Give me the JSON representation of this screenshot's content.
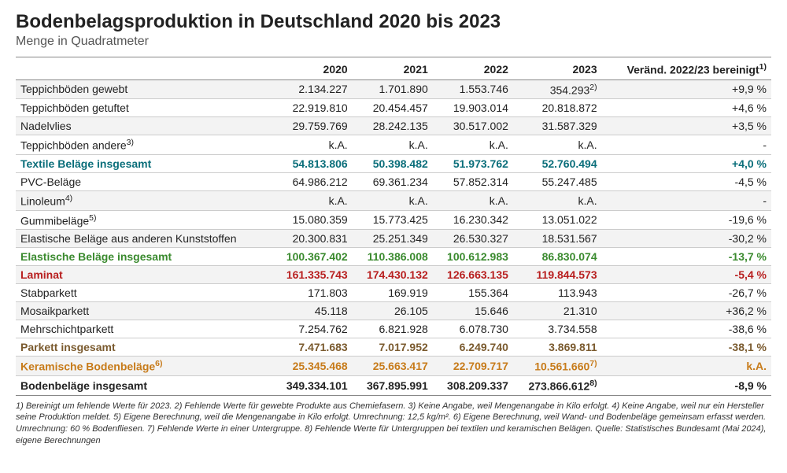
{
  "title": "Bodenbelagsproduktion in Deutschland 2020 bis 2023",
  "subtitle": "Menge in Quadratmeter",
  "columns": [
    "",
    "2020",
    "2021",
    "2022",
    "2023",
    "Veränd. 2022/23 bereinigt"
  ],
  "colSupers": [
    "",
    "",
    "",
    "",
    "",
    "1)"
  ],
  "rows": [
    {
      "label": "Teppichböden gewebt",
      "cells": [
        "2.134.227",
        "1.701.890",
        "1.553.746",
        "354.293",
        "+9,9 %"
      ],
      "sup4": "2)",
      "zebra": true
    },
    {
      "label": "Teppichböden getuftet",
      "cells": [
        "22.919.810",
        "20.454.457",
        "19.903.014",
        "20.818.872",
        "+4,6 %"
      ]
    },
    {
      "label": "Nadelvlies",
      "cells": [
        "29.759.769",
        "28.242.135",
        "30.517.002",
        "31.587.329",
        "+3,5 %"
      ],
      "zebra": true
    },
    {
      "label": "Teppichböden andere",
      "sup": "3)",
      "cells": [
        "k.A.",
        "k.A.",
        "k.A.",
        "k.A.",
        "-"
      ]
    },
    {
      "label": "Textile Beläge insgesamt",
      "cells": [
        "54.813.806",
        "50.398.482",
        "51.973.762",
        "52.760.494",
        "+4,0 %"
      ],
      "cls": "teal"
    },
    {
      "label": "PVC-Beläge",
      "cells": [
        "64.986.212",
        "69.361.234",
        "57.852.314",
        "55.247.485",
        "-4,5 %"
      ]
    },
    {
      "label": "Linoleum",
      "sup": "4)",
      "cells": [
        "k.A.",
        "k.A.",
        "k.A.",
        "k.A.",
        "-"
      ],
      "zebra": true
    },
    {
      "label": "Gummibeläge",
      "sup": "5)",
      "cells": [
        "15.080.359",
        "15.773.425",
        "16.230.342",
        "13.051.022",
        "-19,6 %"
      ]
    },
    {
      "label": "Elastische Beläge aus anderen Kunststoffen",
      "cells": [
        "20.300.831",
        "25.251.349",
        "26.530.327",
        "18.531.567",
        "-30,2 %"
      ],
      "zebra": true
    },
    {
      "label": "Elastische Beläge insgesamt",
      "cells": [
        "100.367.402",
        "110.386.008",
        "100.612.983",
        "86.830.074",
        "-13,7 %"
      ],
      "cls": "green"
    },
    {
      "label": "Laminat",
      "cells": [
        "161.335.743",
        "174.430.132",
        "126.663.135",
        "119.844.573",
        "-5,4 %"
      ],
      "cls": "red"
    },
    {
      "label": "Stabparkett",
      "cells": [
        "171.803",
        "169.919",
        "155.364",
        "113.943",
        "-26,7 %"
      ]
    },
    {
      "label": "Mosaikparkett",
      "cells": [
        "45.118",
        "26.105",
        "15.646",
        "21.310",
        "+36,2 %"
      ],
      "zebra": true
    },
    {
      "label": "Mehrschichtparkett",
      "cells": [
        "7.254.762",
        "6.821.928",
        "6.078.730",
        "3.734.558",
        "-38,6 %"
      ]
    },
    {
      "label": "Parkett insgesamt",
      "cells": [
        "7.471.683",
        "7.017.952",
        "6.249.740",
        "3.869.811",
        "-38,1 %"
      ],
      "cls": "brown"
    },
    {
      "label": "Keramische Bodenbeläge",
      "sup": "6)",
      "cells": [
        "25.345.468",
        "25.663.417",
        "22.709.717",
        "10.561.660",
        "k.A."
      ],
      "sup4": "7)",
      "cls": "orange"
    },
    {
      "label": "Bodenbeläge insgesamt",
      "cells": [
        "349.334.101",
        "367.895.991",
        "308.209.337",
        "273.866.612",
        "-8,9 %"
      ],
      "sup4": "8)",
      "cls": "total"
    }
  ],
  "footnotes": "1) Bereinigt um fehlende Werte für 2023. 2) Fehlende Werte für gewebte Produkte aus Chemiefasern. 3) Keine Angabe, weil Mengenangabe in Kilo erfolgt. 4) Keine Angabe, weil nur ein Hersteller seine Produktion meldet. 5) Eigene Berechnung, weil die Mengenangabe in Kilo erfolgt. Umrechnung: 12,5 kg/m². 6) Eigene Berechnung, weil Wand- und Bodenbeläge gemeinsam erfasst werden. Umrechnung: 60 % Bodenfliesen. 7) Fehlende Werte in einer Untergruppe. 8) Fehlende Werte für Untergruppen bei textilen und keramischen Belägen. Quelle: Statistisches Bundesamt (Mai 2024), eigene Berechnungen"
}
